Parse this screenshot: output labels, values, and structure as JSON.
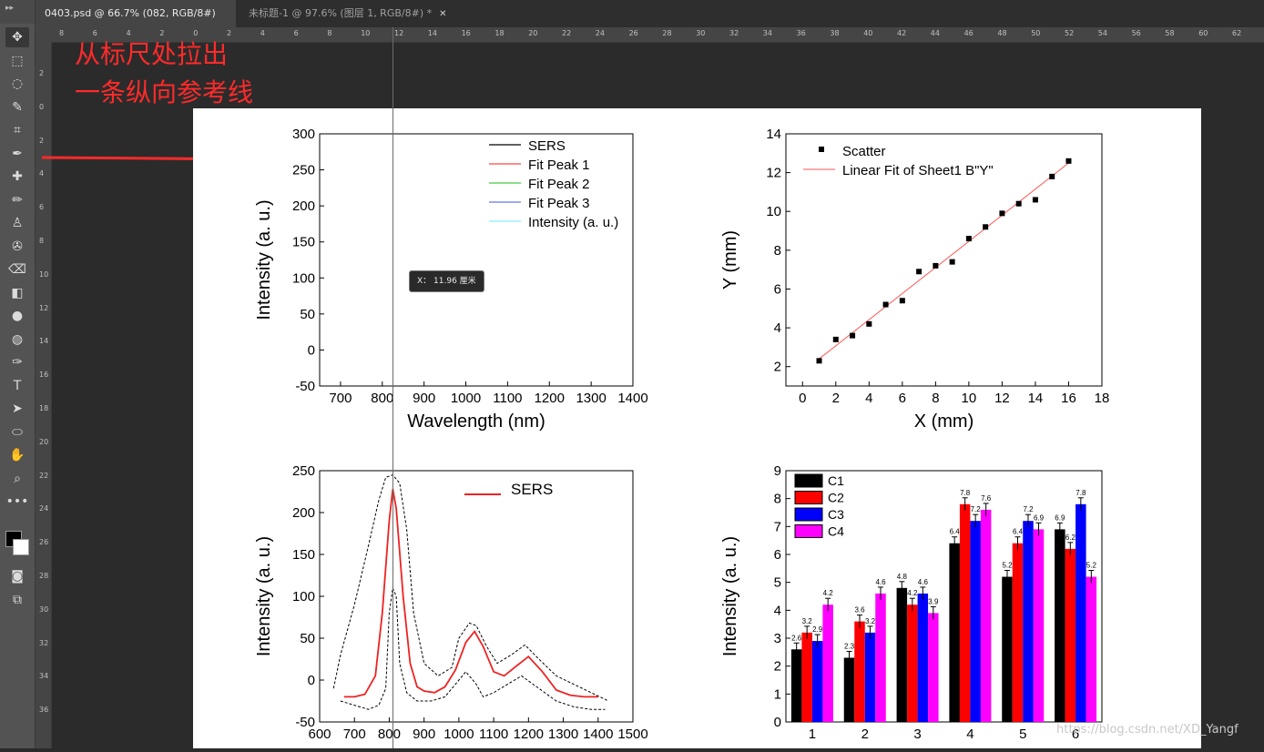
{
  "tabs": [
    {
      "label": "0403.psd @ 66.7% (082, RGB/8#) *"
    },
    {
      "label": "未标题-1 @ 97.6% (图层 1, RGB/8#) *"
    }
  ],
  "annotation": {
    "line1": "从标尺处拉出",
    "line2": "一条纵向参考线"
  },
  "tooltip": {
    "text": "X： 11.96 厘米"
  },
  "watermark": "https://blog.csdn.net/XD_Yangf",
  "ruler": {
    "h_labels": [
      "8",
      "6",
      "4",
      "2",
      "0",
      "2",
      "4",
      "6",
      "8",
      "10",
      "12",
      "14",
      "16",
      "18",
      "20",
      "22",
      "24",
      "26",
      "28",
      "30",
      "32",
      "34",
      "36",
      "38",
      "40",
      "42",
      "44",
      "46",
      "48",
      "50",
      "52",
      "54",
      "56",
      "58",
      "60",
      "62"
    ],
    "v_labels": [
      "2",
      "0",
      "2",
      "4",
      "6",
      "8",
      "10",
      "12",
      "14",
      "16",
      "18",
      "20",
      "22",
      "24",
      "26",
      "28",
      "30",
      "32",
      "34",
      "36"
    ]
  },
  "toolbar": {
    "icons": [
      "move-tool",
      "marquee-tool",
      "lasso-tool",
      "quick-select-tool",
      "crop-tool",
      "eyedropper-tool",
      "healing-tool",
      "brush-tool",
      "stamp-tool",
      "history-brush-tool",
      "eraser-tool",
      "paint-bucket-tool",
      "blur-tool",
      "dodge-tool",
      "pen-tool",
      "type-tool",
      "path-select-tool",
      "ellipse-tool",
      "hand-tool",
      "zoom-tool",
      "more-tools"
    ]
  },
  "chart_data": [
    {
      "type": "line",
      "title": "",
      "xlabel": "Wavelength (nm)",
      "ylabel": "Intensity (a. u.)",
      "xlim": [
        650,
        1400
      ],
      "ylim": [
        -50,
        300
      ],
      "xticks": [
        "700",
        "800",
        "900",
        "1000",
        "1100",
        "1200",
        "1300",
        "1400"
      ],
      "yticks": [
        "-50",
        "0",
        "50",
        "100",
        "150",
        "200",
        "250",
        "300"
      ],
      "legend": [
        "SERS",
        "Fit Peak 1",
        "Fit Peak 2",
        "Fit Peak 3",
        "Intensity (a. u.)"
      ],
      "legend_colors": [
        "#000000",
        "#ff4444",
        "#44cc44",
        "#6677ee",
        "#88eeff"
      ],
      "series": []
    },
    {
      "type": "scatter",
      "xlabel": "X (mm)",
      "ylabel": "Y (mm)",
      "xlim": [
        -1,
        18
      ],
      "ylim": [
        1,
        14
      ],
      "xticks": [
        "0",
        "2",
        "4",
        "6",
        "8",
        "10",
        "12",
        "14",
        "16",
        "18"
      ],
      "yticks": [
        "2",
        "4",
        "6",
        "8",
        "10",
        "12",
        "14"
      ],
      "legend": [
        "Scatter",
        "Linear Fit of Sheet1 B\"Y\""
      ],
      "x": [
        1,
        2,
        3,
        4,
        5,
        6,
        7,
        8,
        9,
        10,
        11,
        12,
        13,
        14,
        15,
        16
      ],
      "y": [
        2.3,
        3.4,
        3.6,
        4.2,
        5.2,
        5.4,
        6.9,
        7.2,
        7.4,
        8.6,
        9.2,
        9.9,
        10.4,
        10.6,
        11.8,
        12.6
      ],
      "fit": {
        "x": [
          1,
          16
        ],
        "y": [
          2.4,
          12.5
        ]
      }
    },
    {
      "type": "line",
      "xlabel": "",
      "ylabel": "Intensity (a. u.)",
      "xlim": [
        600,
        1500
      ],
      "ylim": [
        -50,
        250
      ],
      "xticks": [
        "600",
        "700",
        "800",
        "900",
        "1000",
        "1100",
        "1200",
        "1300",
        "1400",
        "1500"
      ],
      "yticks": [
        "-50",
        "0",
        "50",
        "100",
        "150",
        "200",
        "250"
      ],
      "legend": [
        "SERS"
      ],
      "series": [
        {
          "name": "SERS",
          "x": [
            670,
            700,
            730,
            760,
            780,
            800,
            810,
            820,
            840,
            860,
            880,
            900,
            930,
            960,
            990,
            1020,
            1045,
            1070,
            1100,
            1130,
            1160,
            1200,
            1240,
            1280,
            1320,
            1360,
            1400
          ],
          "y": [
            -20,
            -20,
            -17,
            5,
            80,
            190,
            228,
            205,
            100,
            20,
            -8,
            -13,
            -15,
            -8,
            12,
            45,
            58,
            40,
            10,
            5,
            15,
            28,
            10,
            -12,
            -18,
            -20,
            -20
          ]
        }
      ],
      "upper": {
        "x": [
          640,
          660,
          700,
          740,
          770,
          790,
          810,
          830,
          850,
          870,
          900,
          940,
          980,
          1000,
          1030,
          1050,
          1080,
          1110,
          1150,
          1190,
          1230,
          1280,
          1330,
          1380,
          1430
        ],
        "y": [
          -10,
          30,
          90,
          160,
          215,
          242,
          245,
          235,
          180,
          80,
          20,
          5,
          15,
          50,
          68,
          65,
          40,
          20,
          30,
          42,
          25,
          5,
          -5,
          -15,
          -25
        ]
      },
      "lower": {
        "x": [
          660,
          700,
          740,
          770,
          790,
          800,
          810,
          820,
          830,
          850,
          880,
          920,
          960,
          990,
          1020,
          1050,
          1070,
          1100,
          1140,
          1180,
          1230,
          1280,
          1330,
          1380,
          1420
        ],
        "y": [
          -25,
          -30,
          -35,
          -30,
          -10,
          80,
          110,
          100,
          20,
          -15,
          -25,
          -25,
          -20,
          -5,
          10,
          -5,
          -20,
          -15,
          -5,
          5,
          -10,
          -25,
          -32,
          -35,
          -35
        ]
      }
    },
    {
      "type": "bar",
      "xlabel": "",
      "ylabel": "Intensity (a. u.)",
      "ylim": [
        0,
        9
      ],
      "categories": [
        "1",
        "2",
        "3",
        "4",
        "5",
        "6"
      ],
      "yticks": [
        "0",
        "1",
        "2",
        "3",
        "4",
        "5",
        "6",
        "7",
        "8",
        "9"
      ],
      "series": [
        {
          "name": "C1",
          "color": "#000000",
          "values": [
            2.6,
            2.3,
            4.8,
            6.4,
            5.2,
            6.9
          ]
        },
        {
          "name": "C2",
          "color": "#ff0000",
          "values": [
            3.2,
            3.6,
            4.2,
            7.8,
            6.4,
            6.2
          ]
        },
        {
          "name": "C3",
          "color": "#0000ff",
          "values": [
            2.9,
            3.2,
            4.6,
            7.2,
            7.2,
            7.8
          ]
        },
        {
          "name": "C4",
          "color": "#ff00ff",
          "values": [
            4.2,
            4.6,
            3.9,
            7.6,
            6.9,
            5.2
          ]
        }
      ],
      "value_labels": [
        [
          "2.6",
          "2.3",
          "4.8",
          "6.4",
          "5.2",
          "6.9"
        ],
        [
          "3.2",
          "3.6",
          "4.2",
          "7.8",
          "6.4",
          "6.2"
        ],
        [
          "2.9",
          "3.2",
          "4.6",
          "7.2",
          "7.2",
          "7.8"
        ],
        [
          "4.2",
          "4.6",
          "3.9",
          "7.6",
          "6.9",
          "5.2"
        ]
      ]
    }
  ]
}
